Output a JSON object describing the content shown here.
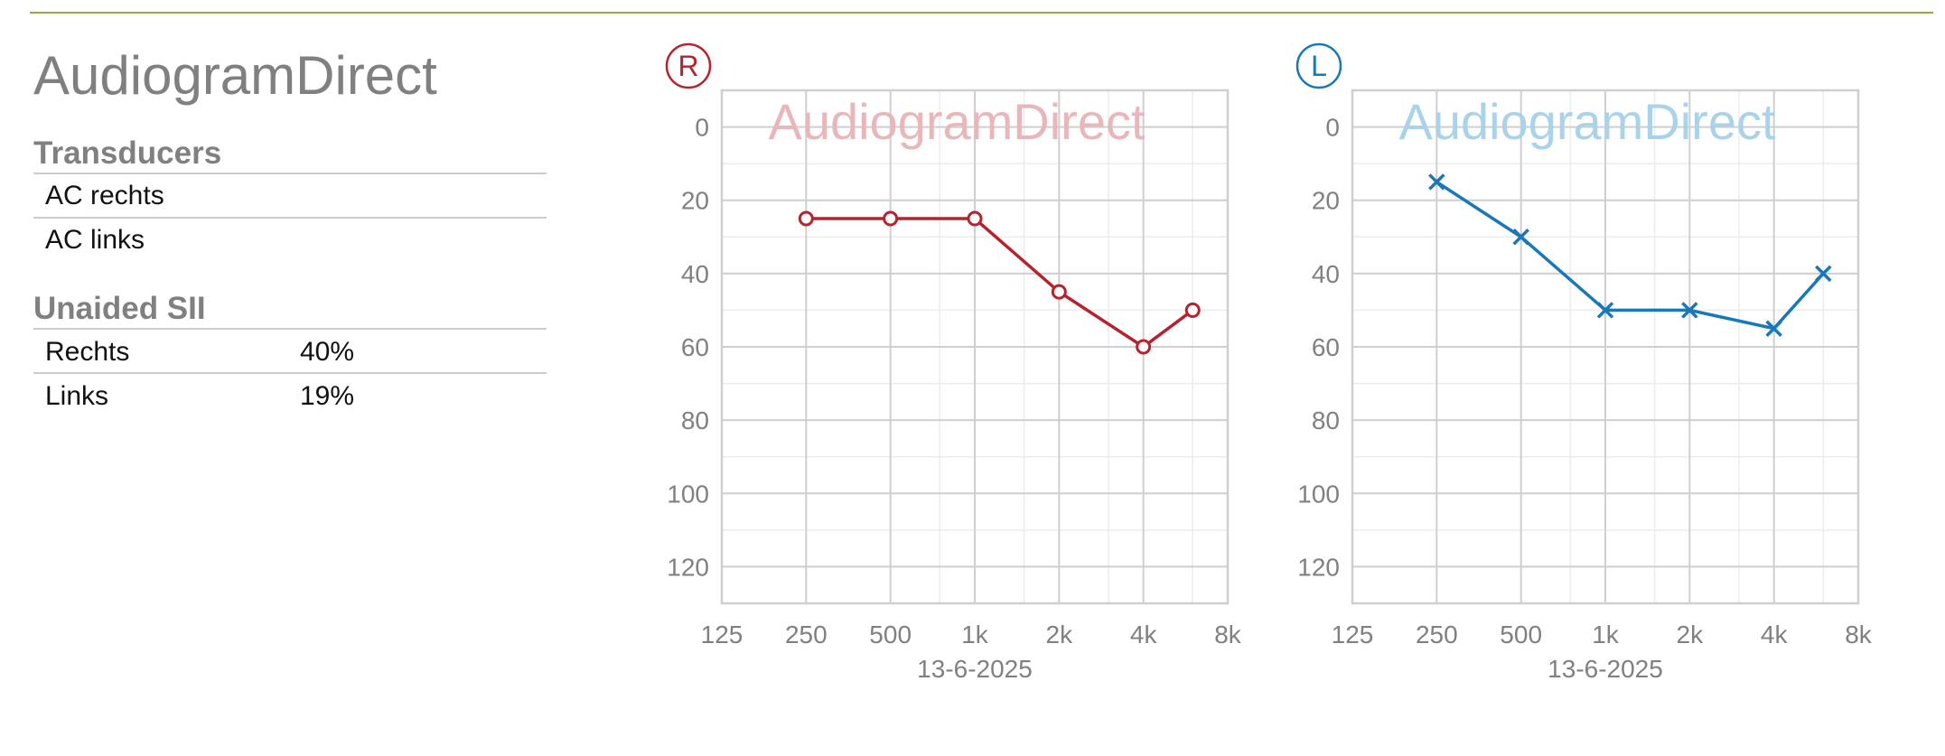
{
  "header": {
    "title": "AudiogramDirect"
  },
  "transducers": {
    "heading": "Transducers",
    "rows": [
      "AC rechts",
      "AC links"
    ]
  },
  "sii": {
    "heading": "Unaided SII",
    "rows": [
      [
        "Rechts",
        "40%"
      ],
      [
        "Links",
        "19%"
      ]
    ]
  },
  "chart_data": [
    {
      "type": "line",
      "ear_label": "R",
      "watermark": "AudiogramDirect",
      "x_label": "13-6-2025",
      "x_scale": "log",
      "xlim": [
        125,
        8000
      ],
      "xticks": [
        125,
        250,
        500,
        {
          "value": 1000,
          "label": "1k"
        },
        {
          "value": 2000,
          "label": "2k"
        },
        {
          "value": 4000,
          "label": "4k"
        },
        {
          "value": 8000,
          "label": "8k"
        }
      ],
      "xminor_ticks": [
        750,
        1500,
        3000,
        6000
      ],
      "ylim": [
        -10,
        130
      ],
      "y_inverted": true,
      "yticks": [
        0,
        20,
        40,
        60,
        80,
        100,
        120
      ],
      "yminor_ticks": [
        10,
        30,
        50,
        70,
        90,
        110
      ],
      "grid": true,
      "x": [
        250,
        500,
        1000,
        2000,
        4000,
        6000
      ],
      "series": [
        {
          "color": "#b5232d",
          "watermark_color": "#e9b7ba",
          "marker": "circle",
          "values": [
            25,
            25,
            25,
            45,
            60,
            50
          ]
        }
      ]
    },
    {
      "type": "line",
      "ear_label": "L",
      "watermark": "AudiogramDirect",
      "x_label": "13-6-2025",
      "x_scale": "log",
      "xlim": [
        125,
        8000
      ],
      "xticks": [
        125,
        250,
        500,
        {
          "value": 1000,
          "label": "1k"
        },
        {
          "value": 2000,
          "label": "2k"
        },
        {
          "value": 4000,
          "label": "4k"
        },
        {
          "value": 8000,
          "label": "8k"
        }
      ],
      "xminor_ticks": [
        750,
        1500,
        3000,
        6000
      ],
      "ylim": [
        -10,
        130
      ],
      "y_inverted": true,
      "yticks": [
        0,
        20,
        40,
        60,
        80,
        100,
        120
      ],
      "yminor_ticks": [
        10,
        30,
        50,
        70,
        90,
        110
      ],
      "grid": true,
      "x": [
        250,
        500,
        1000,
        2000,
        4000,
        6000
      ],
      "series": [
        {
          "color": "#1878b8",
          "watermark_color": "#aad3ea",
          "marker": "cross",
          "values": [
            15,
            30,
            50,
            50,
            55,
            40
          ]
        }
      ]
    }
  ]
}
